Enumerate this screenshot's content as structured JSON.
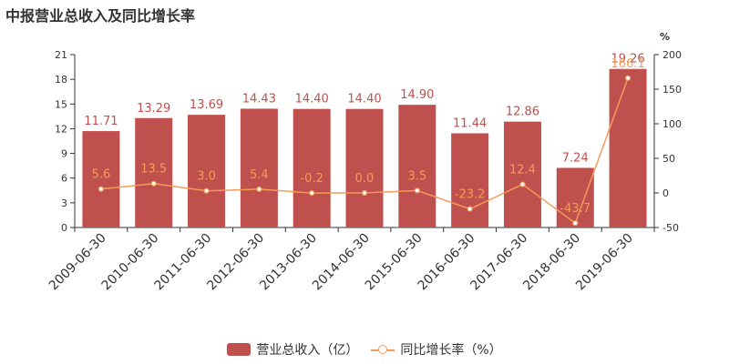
{
  "title": "中报营业总收入及同比增长率",
  "chart_data": {
    "type": "bar+line",
    "categories": [
      "2009-06-30",
      "2010-06-30",
      "2011-06-30",
      "2012-06-30",
      "2013-06-30",
      "2014-06-30",
      "2015-06-30",
      "2016-06-30",
      "2017-06-30",
      "2018-06-30",
      "2019-06-30"
    ],
    "bars": {
      "name": "营业总收入（亿）",
      "values": [
        11.71,
        13.29,
        13.69,
        14.43,
        14.4,
        14.4,
        14.9,
        11.44,
        12.86,
        7.24,
        19.26
      ],
      "labels": [
        "11.71",
        "13.29",
        "13.69",
        "14.43",
        "14.40",
        "14.40",
        "14.90",
        "11.44",
        "12.86",
        "7.24",
        "19.26"
      ]
    },
    "line": {
      "name": "同比增长率（%）",
      "values": [
        5.6,
        13.5,
        3.0,
        5.4,
        -0.2,
        0.0,
        3.5,
        -23.2,
        12.4,
        -43.7,
        166.1
      ],
      "labels": [
        "5.6",
        "13.5",
        "3.0",
        "5.4",
        "-0.2",
        "0.0",
        "3.5",
        "-23.2",
        "12.4",
        "-43.7",
        "166.1"
      ]
    },
    "y_left": {
      "min": 0,
      "max": 21,
      "ticks": [
        "0",
        "3",
        "6",
        "9",
        "12",
        "15",
        "18",
        "21"
      ]
    },
    "y_right": {
      "min": -50,
      "max": 200,
      "ticks": [
        "-50",
        "0",
        "50",
        "100",
        "150",
        "200"
      ],
      "unit": "%"
    },
    "grid": false,
    "legend_position": "bottom",
    "colors": {
      "bar": "#c0504d",
      "line": "#f39c5a",
      "axis": "#333333"
    }
  }
}
